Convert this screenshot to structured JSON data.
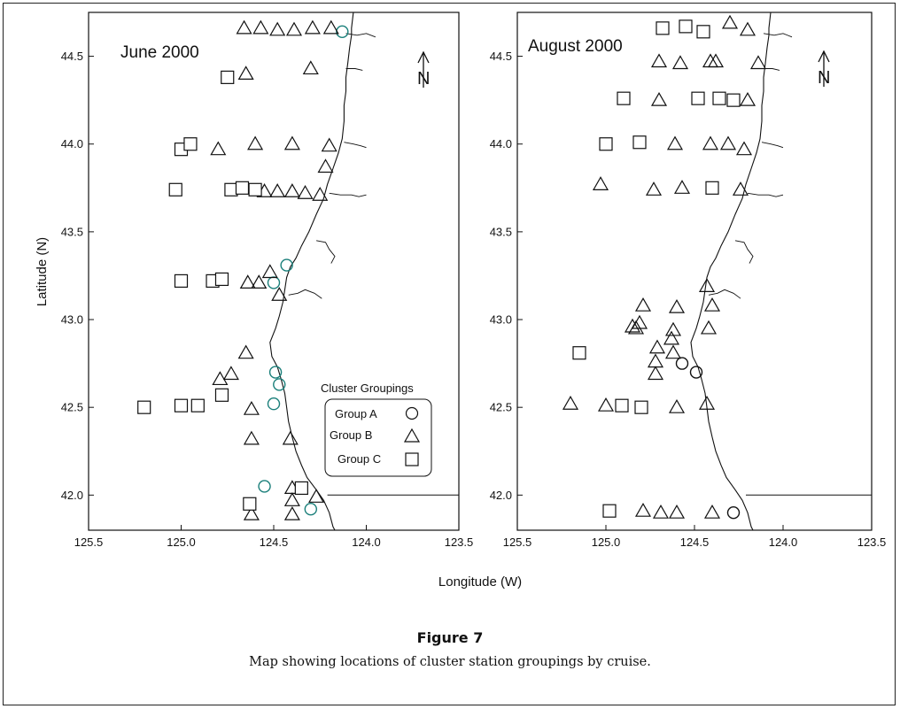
{
  "figure": {
    "title": "Figure 7",
    "caption": "Map showing locations of cluster station groupings by cruise."
  },
  "axes": {
    "xlabel": "Longitude (W)",
    "ylabel": "Latitude (N)"
  },
  "legend": {
    "title": "Cluster Groupings",
    "items": [
      {
        "label": "Group A",
        "marker": "circle"
      },
      {
        "label": "Group B",
        "marker": "triangle"
      },
      {
        "label": "Group C",
        "marker": "square"
      }
    ]
  },
  "north_arrow_label": "N",
  "colors": {
    "ink": "#111111",
    "group_a_june": "#1a7f7a",
    "group_a_august": "#111111"
  },
  "chart_data": [
    {
      "type": "scatter",
      "title": "June 2000",
      "xlabel": "Longitude (W)",
      "ylabel": "Latitude (N)",
      "xlim": [
        125.5,
        123.5
      ],
      "ylim": [
        41.8,
        44.75
      ],
      "xticks": [
        "125.5",
        "125.0",
        "124.5",
        "124.0",
        "123.5"
      ],
      "yticks": [
        "42.0",
        "42.5",
        "43.0",
        "43.5",
        "44.0",
        "44.5"
      ],
      "series": [
        {
          "name": "Group A",
          "marker": "circle",
          "points": [
            [
              124.13,
              44.64
            ],
            [
              124.43,
              43.31
            ],
            [
              124.5,
              43.21
            ],
            [
              124.49,
              42.7
            ],
            [
              124.47,
              42.63
            ],
            [
              124.5,
              42.52
            ],
            [
              124.55,
              42.05
            ],
            [
              124.3,
              41.92
            ]
          ]
        },
        {
          "name": "Group B",
          "marker": "triangle",
          "points": [
            [
              124.66,
              44.66
            ],
            [
              124.57,
              44.66
            ],
            [
              124.48,
              44.65
            ],
            [
              124.39,
              44.65
            ],
            [
              124.29,
              44.66
            ],
            [
              124.19,
              44.66
            ],
            [
              124.65,
              44.4
            ],
            [
              124.3,
              44.43
            ],
            [
              124.8,
              43.97
            ],
            [
              124.6,
              44.0
            ],
            [
              124.4,
              44.0
            ],
            [
              124.2,
              43.99
            ],
            [
              124.22,
              43.87
            ],
            [
              124.55,
              43.73
            ],
            [
              124.48,
              43.73
            ],
            [
              124.4,
              43.73
            ],
            [
              124.33,
              43.72
            ],
            [
              124.25,
              43.71
            ],
            [
              124.64,
              43.21
            ],
            [
              124.58,
              43.21
            ],
            [
              124.52,
              43.27
            ],
            [
              124.47,
              43.14
            ],
            [
              124.65,
              42.81
            ],
            [
              124.73,
              42.69
            ],
            [
              124.79,
              42.66
            ],
            [
              124.62,
              42.49
            ],
            [
              124.62,
              42.32
            ],
            [
              124.41,
              42.32
            ],
            [
              124.62,
              41.89
            ],
            [
              124.4,
              42.04
            ],
            [
              124.4,
              41.97
            ],
            [
              124.4,
              41.89
            ],
            [
              124.27,
              41.99
            ]
          ]
        },
        {
          "name": "Group C",
          "marker": "square",
          "points": [
            [
              124.75,
              44.38
            ],
            [
              125.0,
              43.97
            ],
            [
              124.95,
              44.0
            ],
            [
              125.03,
              43.74
            ],
            [
              124.73,
              43.74
            ],
            [
              124.67,
              43.75
            ],
            [
              124.6,
              43.74
            ],
            [
              125.0,
              43.22
            ],
            [
              124.83,
              43.22
            ],
            [
              124.78,
              43.23
            ],
            [
              125.2,
              42.5
            ],
            [
              125.0,
              42.51
            ],
            [
              124.91,
              42.51
            ],
            [
              124.78,
              42.57
            ],
            [
              124.35,
              42.04
            ],
            [
              124.63,
              41.95
            ]
          ]
        }
      ]
    },
    {
      "type": "scatter",
      "title": "August 2000",
      "xlabel": "Longitude (W)",
      "ylabel": "Latitude (N)",
      "xlim": [
        125.5,
        123.5
      ],
      "ylim": [
        41.8,
        44.75
      ],
      "xticks": [
        "125.5",
        "125.0",
        "124.5",
        "124.0",
        "123.5"
      ],
      "yticks": [
        "42.0",
        "42.5",
        "43.0",
        "43.5",
        "44.0",
        "44.5"
      ],
      "series": [
        {
          "name": "Group A",
          "marker": "circle",
          "points": [
            [
              124.57,
              42.75
            ],
            [
              124.49,
              42.7
            ],
            [
              124.28,
              41.9
            ]
          ]
        },
        {
          "name": "Group B",
          "marker": "triangle",
          "points": [
            [
              124.3,
              44.69
            ],
            [
              124.2,
              44.65
            ],
            [
              124.7,
              44.47
            ],
            [
              124.58,
              44.46
            ],
            [
              124.41,
              44.47
            ],
            [
              124.38,
              44.47
            ],
            [
              124.14,
              44.46
            ],
            [
              124.7,
              44.25
            ],
            [
              124.2,
              44.25
            ],
            [
              124.61,
              44.0
            ],
            [
              124.41,
              44.0
            ],
            [
              124.31,
              44.0
            ],
            [
              124.22,
              43.97
            ],
            [
              125.03,
              43.77
            ],
            [
              124.73,
              43.74
            ],
            [
              124.57,
              43.75
            ],
            [
              124.24,
              43.74
            ],
            [
              124.43,
              43.19
            ],
            [
              124.79,
              43.08
            ],
            [
              124.6,
              43.07
            ],
            [
              124.4,
              43.08
            ],
            [
              124.81,
              42.98
            ],
            [
              124.85,
              42.96
            ],
            [
              124.83,
              42.95
            ],
            [
              124.62,
              42.94
            ],
            [
              124.42,
              42.95
            ],
            [
              124.63,
              42.89
            ],
            [
              124.71,
              42.84
            ],
            [
              124.62,
              42.81
            ],
            [
              124.72,
              42.76
            ],
            [
              124.72,
              42.69
            ],
            [
              125.2,
              42.52
            ],
            [
              125.0,
              42.51
            ],
            [
              124.6,
              42.5
            ],
            [
              124.43,
              42.52
            ],
            [
              124.79,
              41.91
            ],
            [
              124.69,
              41.9
            ],
            [
              124.6,
              41.9
            ],
            [
              124.4,
              41.9
            ]
          ]
        },
        {
          "name": "Group C",
          "marker": "square",
          "points": [
            [
              124.68,
              44.66
            ],
            [
              124.55,
              44.67
            ],
            [
              124.45,
              44.64
            ],
            [
              124.9,
              44.26
            ],
            [
              124.48,
              44.26
            ],
            [
              124.36,
              44.26
            ],
            [
              124.28,
              44.25
            ],
            [
              125.0,
              44.0
            ],
            [
              124.81,
              44.01
            ],
            [
              124.4,
              43.75
            ],
            [
              125.15,
              42.81
            ],
            [
              124.91,
              42.51
            ],
            [
              124.8,
              42.5
            ],
            [
              124.98,
              41.91
            ]
          ]
        }
      ]
    }
  ]
}
